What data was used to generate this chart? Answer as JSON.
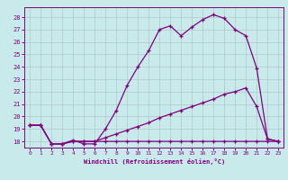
{
  "title": "",
  "xlabel": "Windchill (Refroidissement éolien,°C)",
  "bg_color": "#c8eaea",
  "grid_color": "#b0c8c8",
  "line_color": "#800080",
  "xlim": [
    -0.5,
    23.5
  ],
  "ylim": [
    17.5,
    28.8
  ],
  "xticks": [
    0,
    1,
    2,
    3,
    4,
    5,
    6,
    7,
    8,
    9,
    10,
    11,
    12,
    13,
    14,
    15,
    16,
    17,
    18,
    19,
    20,
    21,
    22,
    23
  ],
  "yticks": [
    18,
    19,
    20,
    21,
    22,
    23,
    24,
    25,
    26,
    27,
    28
  ],
  "line1_x": [
    0,
    1,
    2,
    3,
    4,
    5,
    6,
    7,
    8,
    9,
    10,
    11,
    12,
    13,
    14,
    15,
    16,
    17,
    18,
    19,
    20,
    21,
    22,
    23
  ],
  "line1_y": [
    19.3,
    19.3,
    17.8,
    17.8,
    18.1,
    17.8,
    17.8,
    19.0,
    20.5,
    22.5,
    24.0,
    25.3,
    27.0,
    27.3,
    26.5,
    27.2,
    27.8,
    28.2,
    27.9,
    27.0,
    26.5,
    23.9,
    18.2,
    18.0
  ],
  "line2_x": [
    0,
    1,
    2,
    3,
    4,
    5,
    6,
    7,
    8,
    9,
    10,
    11,
    12,
    13,
    14,
    15,
    16,
    17,
    18,
    19,
    20,
    21,
    22,
    23
  ],
  "line2_y": [
    19.3,
    19.3,
    17.8,
    17.8,
    18.0,
    18.0,
    18.0,
    18.3,
    18.6,
    18.9,
    19.2,
    19.5,
    19.9,
    20.2,
    20.5,
    20.8,
    21.1,
    21.4,
    21.8,
    22.0,
    22.3,
    20.8,
    18.2,
    18.0
  ],
  "line3_x": [
    0,
    1,
    2,
    3,
    4,
    5,
    6,
    7,
    8,
    9,
    10,
    11,
    12,
    13,
    14,
    15,
    16,
    17,
    18,
    19,
    20,
    21,
    22,
    23
  ],
  "line3_y": [
    19.3,
    19.3,
    17.8,
    17.8,
    18.0,
    18.0,
    18.0,
    18.0,
    18.0,
    18.0,
    18.0,
    18.0,
    18.0,
    18.0,
    18.0,
    18.0,
    18.0,
    18.0,
    18.0,
    18.0,
    18.0,
    18.0,
    18.0,
    18.0
  ]
}
